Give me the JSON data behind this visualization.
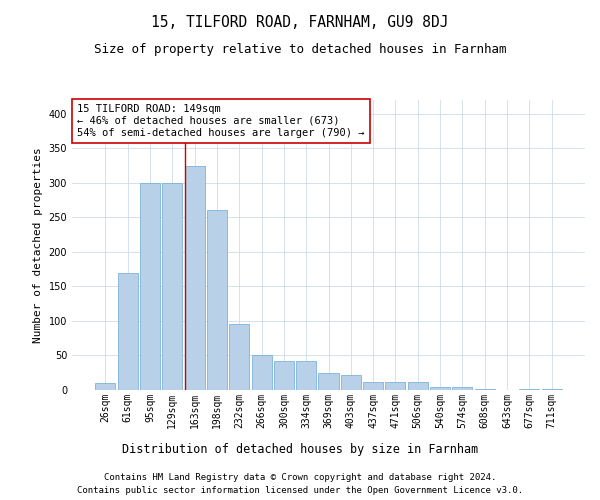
{
  "title": "15, TILFORD ROAD, FARNHAM, GU9 8DJ",
  "subtitle": "Size of property relative to detached houses in Farnham",
  "xlabel": "Distribution of detached houses by size in Farnham",
  "ylabel": "Number of detached properties",
  "categories": [
    "26sqm",
    "61sqm",
    "95sqm",
    "129sqm",
    "163sqm",
    "198sqm",
    "232sqm",
    "266sqm",
    "300sqm",
    "334sqm",
    "369sqm",
    "403sqm",
    "437sqm",
    "471sqm",
    "506sqm",
    "540sqm",
    "574sqm",
    "608sqm",
    "643sqm",
    "677sqm",
    "711sqm"
  ],
  "values": [
    10,
    170,
    300,
    300,
    325,
    260,
    95,
    50,
    42,
    42,
    25,
    22,
    12,
    12,
    12,
    4,
    4,
    1,
    0,
    2,
    2
  ],
  "bar_color": "#b8d0e8",
  "bar_edgecolor": "#6aaad4",
  "bar_linewidth": 0.5,
  "vline_color": "#cc0000",
  "vline_linewidth": 1.0,
  "vline_index": 3.59,
  "annotation_text": "15 TILFORD ROAD: 149sqm\n← 46% of detached houses are smaller (673)\n54% of semi-detached houses are larger (790) →",
  "annotation_box_edgecolor": "#cc0000",
  "annotation_box_facecolor": "#ffffff",
  "annotation_fontsize": 7.5,
  "ylim": [
    0,
    420
  ],
  "yticks": [
    0,
    50,
    100,
    150,
    200,
    250,
    300,
    350,
    400
  ],
  "title_fontsize": 10.5,
  "subtitle_fontsize": 9,
  "xlabel_fontsize": 8.5,
  "ylabel_fontsize": 8,
  "tick_fontsize": 7,
  "background_color": "#ffffff",
  "grid_color": "#d0dce8",
  "footer_line1": "Contains HM Land Registry data © Crown copyright and database right 2024.",
  "footer_line2": "Contains public sector information licensed under the Open Government Licence v3.0.",
  "footer_fontsize": 6.5
}
